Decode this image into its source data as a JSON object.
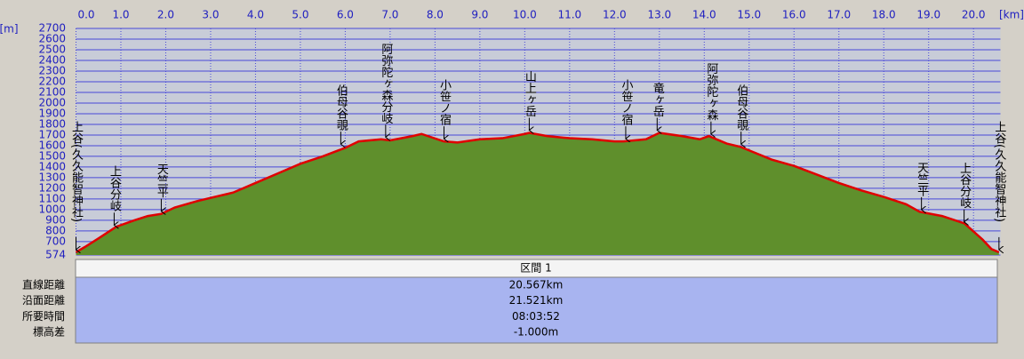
{
  "chart_data": {
    "type": "area",
    "y_unit_label": "[m]",
    "x_unit_label": "[km]",
    "xlim": [
      0,
      20.6
    ],
    "ylim": [
      574,
      2700
    ],
    "xticks": [
      {
        "value": 0,
        "label": "0.0"
      },
      {
        "value": 1,
        "label": "1.0"
      },
      {
        "value": 2,
        "label": "2.0"
      },
      {
        "value": 3,
        "label": "3.0"
      },
      {
        "value": 4,
        "label": "4.0"
      },
      {
        "value": 5,
        "label": "5.0"
      },
      {
        "value": 6,
        "label": "6.0"
      },
      {
        "value": 7,
        "label": "7.0"
      },
      {
        "value": 8,
        "label": "8.0"
      },
      {
        "value": 9,
        "label": "9.0"
      },
      {
        "value": 10,
        "label": "10.0"
      },
      {
        "value": 11,
        "label": "11.0"
      },
      {
        "value": 12,
        "label": "12.0"
      },
      {
        "value": 13,
        "label": "13.0"
      },
      {
        "value": 14,
        "label": "14.0"
      },
      {
        "value": 15,
        "label": "15.0"
      },
      {
        "value": 16,
        "label": "16.0"
      },
      {
        "value": 17,
        "label": "17.0"
      },
      {
        "value": 18,
        "label": "18.0"
      },
      {
        "value": 19,
        "label": "19.0"
      },
      {
        "value": 20,
        "label": "20.0"
      }
    ],
    "yticks": [
      574,
      700,
      800,
      900,
      1000,
      1100,
      1200,
      1300,
      1400,
      1500,
      1600,
      1700,
      1800,
      1900,
      2000,
      2100,
      2200,
      2300,
      2400,
      2500,
      2600,
      2700
    ],
    "grid": true,
    "x": [
      0,
      0.2,
      0.5,
      0.9,
      1.3,
      1.6,
      1.9,
      2.2,
      2.7,
      3.0,
      3.5,
      4.0,
      4.5,
      5.0,
      5.5,
      6.0,
      6.3,
      6.8,
      7.0,
      7.5,
      7.7,
      8.2,
      8.5,
      9.0,
      9.5,
      10.0,
      10.1,
      10.5,
      11.0,
      11.5,
      12.0,
      12.2,
      12.7,
      13.0,
      13.5,
      13.9,
      14.1,
      14.5,
      14.8,
      15.5,
      16.0,
      16.5,
      17.0,
      17.5,
      18.0,
      18.5,
      18.8,
      19.3,
      19.8,
      20.2,
      20.4,
      20.567
    ],
    "series": [
      {
        "color": "#e00000",
        "fill": "#5f8f2c",
        "values": [
          600,
          650,
          730,
          840,
          900,
          940,
          960,
          1020,
          1080,
          1110,
          1160,
          1250,
          1340,
          1430,
          1500,
          1580,
          1640,
          1660,
          1650,
          1690,
          1710,
          1640,
          1630,
          1660,
          1670,
          1710,
          1720,
          1690,
          1670,
          1660,
          1640,
          1640,
          1660,
          1720,
          1690,
          1660,
          1690,
          1620,
          1590,
          1470,
          1410,
          1330,
          1250,
          1180,
          1120,
          1050,
          980,
          940,
          870,
          720,
          630,
          600
        ]
      }
    ],
    "waypoints": [
      {
        "label": "上谷(久久能智神社)",
        "x": 0,
        "elevation": 600
      },
      {
        "label": "上谷分岐",
        "x": 0.85,
        "elevation": 830
      },
      {
        "label": "天竺平",
        "x": 1.9,
        "elevation": 960
      },
      {
        "label": "伯母谷覗",
        "x": 5.9,
        "elevation": 1590
      },
      {
        "label": "阿弥陀ヶ森分岐",
        "x": 6.9,
        "elevation": 1655
      },
      {
        "label": "小笹ノ宿",
        "x": 8.2,
        "elevation": 1640
      },
      {
        "label": "山上ヶ岳",
        "x": 10.1,
        "elevation": 1720
      },
      {
        "label": "小笹ノ宿",
        "x": 12.25,
        "elevation": 1640
      },
      {
        "label": "竜ヶ岳",
        "x": 12.95,
        "elevation": 1720
      },
      {
        "label": "阿弥陀ヶ森",
        "x": 14.15,
        "elevation": 1685
      },
      {
        "label": "伯母谷覗",
        "x": 14.82,
        "elevation": 1590
      },
      {
        "label": "天竺平",
        "x": 18.84,
        "elevation": 975
      },
      {
        "label": "上谷分岐",
        "x": 19.79,
        "elevation": 860
      },
      {
        "label": "上谷(久久能智神社)",
        "x": 20.567,
        "elevation": 600
      }
    ]
  },
  "table": {
    "header": "区間 1",
    "rows": [
      [
        "直線距離",
        "20.567km"
      ],
      [
        "沿面距離",
        "21.521km"
      ],
      [
        "所要時間",
        "08:03:52"
      ],
      [
        "標高差",
        "-1.000m"
      ]
    ]
  }
}
